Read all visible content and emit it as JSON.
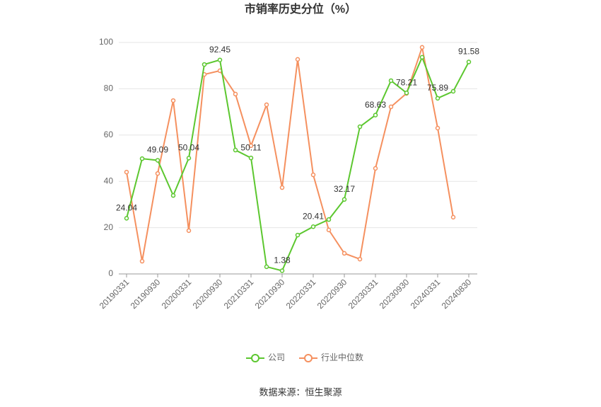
{
  "chart_data": {
    "type": "line",
    "title": "市销率历史分位（%）",
    "categories": [
      "20190331",
      null,
      "20190930",
      null,
      "20200331",
      null,
      "20200930",
      null,
      "20210331",
      null,
      "20210930",
      null,
      "20220331",
      null,
      "20220930",
      null,
      "20230331",
      null,
      "20230930",
      null,
      "20240331",
      null,
      "20240830"
    ],
    "series": [
      {
        "name": "公司",
        "color": "#5cc72f",
        "values": [
          24.04,
          49.8,
          49.09,
          33.9,
          50.04,
          90.5,
          92.45,
          53.5,
          50.11,
          3.1,
          1.38,
          16.8,
          20.41,
          23.5,
          32.17,
          63.6,
          68.63,
          83.5,
          78.21,
          93.6,
          75.89,
          78.9,
          91.58
        ],
        "value_labels": [
          "24.04",
          null,
          "49.09",
          null,
          "50.04",
          null,
          "92.45",
          null,
          "50.11",
          null,
          "1.38",
          null,
          "20.41",
          null,
          "32.17",
          null,
          "68.63",
          null,
          "78.21",
          null,
          "75.89",
          null,
          "91.58"
        ]
      },
      {
        "name": "行业中位数",
        "color": "#f5905f",
        "values": [
          44,
          5.5,
          43.4,
          74.9,
          18.7,
          86.2,
          87.8,
          77.7,
          55.4,
          73.1,
          37.3,
          92.7,
          42.8,
          19,
          8.9,
          6.4,
          45.6,
          72.2,
          78,
          97.9,
          63,
          24.5,
          null
        ]
      }
    ],
    "ylim": [
      0,
      100
    ],
    "yticks": [
      0,
      20,
      40,
      60,
      80,
      100
    ],
    "grid": true,
    "source": "数据来源：恒生聚源"
  }
}
